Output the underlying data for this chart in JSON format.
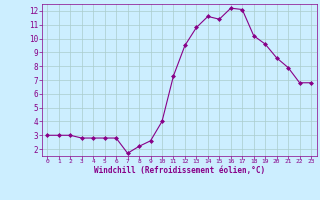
{
  "x": [
    0,
    1,
    2,
    3,
    4,
    5,
    6,
    7,
    8,
    9,
    10,
    11,
    12,
    13,
    14,
    15,
    16,
    17,
    18,
    19,
    20,
    21,
    22,
    23
  ],
  "y": [
    3,
    3,
    3,
    2.8,
    2.8,
    2.8,
    2.8,
    1.7,
    2.2,
    2.6,
    4.0,
    7.3,
    9.5,
    10.8,
    11.6,
    11.4,
    12.2,
    12.1,
    10.2,
    9.6,
    8.6,
    7.9,
    6.8,
    6.8
  ],
  "line_color": "#880088",
  "marker": "D",
  "marker_size": 2,
  "bg_color": "#cceeff",
  "grid_color": "#aacccc",
  "xlabel": "Windchill (Refroidissement éolien,°C)",
  "xlabel_color": "#880088",
  "tick_color": "#880088",
  "xlim": [
    -0.5,
    23.5
  ],
  "ylim": [
    1.5,
    12.5
  ],
  "yticks": [
    2,
    3,
    4,
    5,
    6,
    7,
    8,
    9,
    10,
    11,
    12
  ],
  "xticks": [
    0,
    1,
    2,
    3,
    4,
    5,
    6,
    7,
    8,
    9,
    10,
    11,
    12,
    13,
    14,
    15,
    16,
    17,
    18,
    19,
    20,
    21,
    22,
    23
  ]
}
